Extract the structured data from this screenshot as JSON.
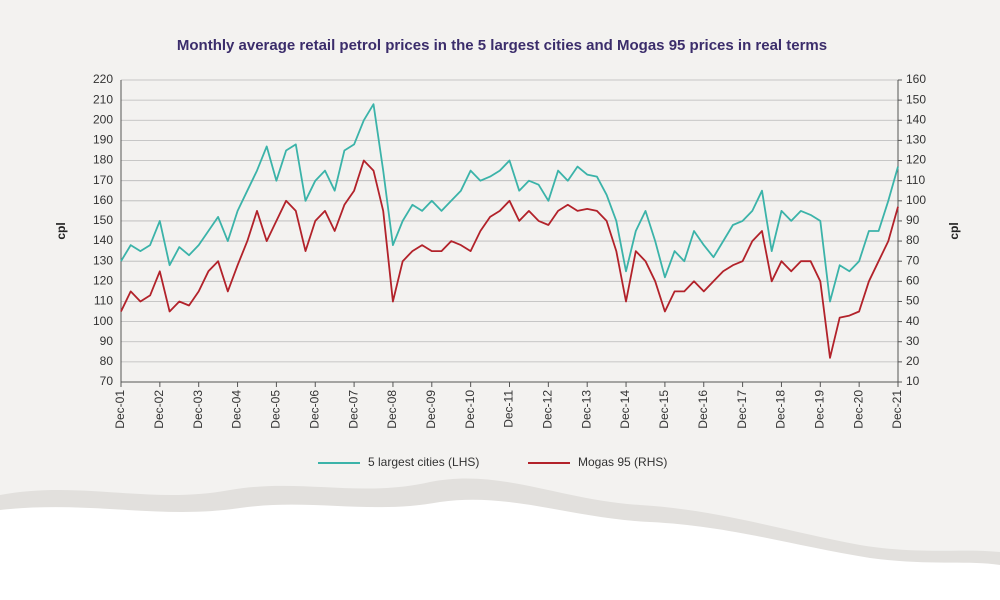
{
  "chart_data": {
    "type": "line",
    "title": "Monthly average retail petrol prices in the 5 largest cities and Mogas 95 prices in real terms",
    "y_label": "cpl",
    "y2_label": "cpl",
    "categories": [
      "Dec-01",
      null,
      null,
      null,
      "Dec-02",
      null,
      null,
      null,
      "Dec-03",
      null,
      null,
      null,
      "Dec-04",
      null,
      null,
      null,
      "Dec-05",
      null,
      null,
      null,
      "Dec-06",
      null,
      null,
      null,
      "Dec-07",
      null,
      null,
      null,
      "Dec-08",
      null,
      null,
      null,
      "Dec-09",
      null,
      null,
      null,
      "Dec-10",
      null,
      null,
      null,
      "Dec-11",
      null,
      null,
      null,
      "Dec-12",
      null,
      null,
      null,
      "Dec-13",
      null,
      null,
      null,
      "Dec-14",
      null,
      null,
      null,
      "Dec-15",
      null,
      null,
      null,
      "Dec-16",
      null,
      null,
      null,
      "Dec-17",
      null,
      null,
      null,
      "Dec-18",
      null,
      null,
      null,
      "Dec-19",
      null,
      null,
      null,
      "Dec-20",
      null,
      null,
      null,
      "Dec-21"
    ],
    "series": [
      {
        "name": "5 largest cities (LHS)",
        "color": "#3bb3a9",
        "values": [
          130,
          138,
          135,
          138,
          150,
          128,
          137,
          133,
          138,
          145,
          152,
          140,
          155,
          165,
          175,
          187,
          170,
          185,
          188,
          160,
          170,
          175,
          165,
          185,
          188,
          200,
          208,
          175,
          138,
          150,
          158,
          155,
          160,
          155,
          160,
          165,
          175,
          170,
          172,
          175,
          180,
          165,
          170,
          168,
          160,
          175,
          170,
          177,
          173,
          172,
          163,
          150,
          125,
          145,
          155,
          140,
          122,
          135,
          130,
          145,
          138,
          132,
          140,
          148,
          150,
          155,
          165,
          135,
          155,
          150,
          155,
          153,
          150,
          110,
          128,
          125,
          130,
          145,
          145,
          160,
          177
        ]
      },
      {
        "name": "Mogas 95 (RHS)",
        "color": "#b2222a",
        "axis": "y2",
        "values": [
          45,
          55,
          50,
          53,
          65,
          45,
          50,
          48,
          55,
          65,
          70,
          55,
          68,
          80,
          95,
          80,
          90,
          100,
          95,
          75,
          90,
          95,
          85,
          98,
          105,
          120,
          115,
          95,
          50,
          70,
          75,
          78,
          75,
          75,
          80,
          78,
          75,
          85,
          92,
          95,
          100,
          90,
          95,
          90,
          88,
          95,
          98,
          95,
          96,
          95,
          90,
          75,
          50,
          75,
          70,
          60,
          45,
          55,
          55,
          60,
          55,
          60,
          65,
          68,
          70,
          80,
          85,
          60,
          70,
          65,
          70,
          70,
          60,
          22,
          42,
          43,
          45,
          60,
          70,
          80,
          97
        ]
      }
    ],
    "ylim": [
      70,
      220
    ],
    "yticks": [
      70,
      80,
      90,
      100,
      110,
      120,
      130,
      140,
      150,
      160,
      170,
      180,
      190,
      200,
      210,
      220
    ],
    "y2lim": [
      10,
      160
    ],
    "y2ticks": [
      10,
      20,
      30,
      40,
      50,
      60,
      70,
      80,
      90,
      100,
      110,
      120,
      130,
      140,
      150,
      160
    ],
    "grid": true,
    "legend": "bottom"
  }
}
